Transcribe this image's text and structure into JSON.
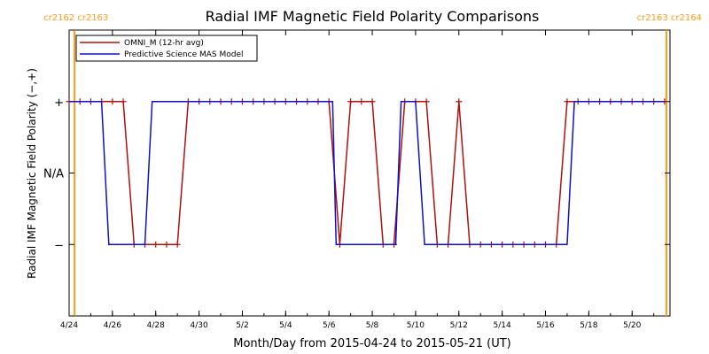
{
  "colors": {
    "omni": "#b01010",
    "mas": "#1010c8",
    "carrington": "#ff9a1a",
    "axis": "#000000"
  },
  "chart_data": {
    "type": "line",
    "title": "Radial IMF Magnetic Field Polarity Comparisons",
    "xlabel": "Month/Day from 2015-04-24 to 2015-05-21 (UT)",
    "ylabel": "Radial IMF Magnetic Field Polarity (−,+)",
    "xlim": [
      "2015-04-24T00:00",
      "2015-05-21T18:00"
    ],
    "ylim": [
      -2,
      2
    ],
    "x_ticks": [
      {
        "label": "4/24",
        "date": "2015-04-24"
      },
      {
        "label": "4/26",
        "date": "2015-04-26"
      },
      {
        "label": "4/28",
        "date": "2015-04-28"
      },
      {
        "label": "4/30",
        "date": "2015-04-30"
      },
      {
        "label": "5/2",
        "date": "2015-05-02"
      },
      {
        "label": "5/4",
        "date": "2015-05-04"
      },
      {
        "label": "5/6",
        "date": "2015-05-06"
      },
      {
        "label": "5/8",
        "date": "2015-05-08"
      },
      {
        "label": "5/10",
        "date": "2015-05-10"
      },
      {
        "label": "5/12",
        "date": "2015-05-12"
      },
      {
        "label": "5/14",
        "date": "2015-05-14"
      },
      {
        "label": "5/16",
        "date": "2015-05-16"
      },
      {
        "label": "5/18",
        "date": "2015-05-18"
      },
      {
        "label": "5/20",
        "date": "2015-05-20"
      }
    ],
    "y_ticks": [
      {
        "label": "+",
        "value": 1
      },
      {
        "label": "N/A",
        "value": 0
      },
      {
        "label": "−",
        "value": -1
      }
    ],
    "carrington_rotations": [
      {
        "label": "cr2162 cr2163",
        "date": "2015-04-24T06:00"
      },
      {
        "label": "cr2163 cr2164",
        "date": "2015-05-21T14:00"
      }
    ],
    "legend_position": "top-left",
    "grid": false,
    "series": [
      {
        "name": "OMNI_M (12-hr avg)",
        "color": "#b01010",
        "markers": "plus",
        "x": [
          "2015-04-24T00:00",
          "2015-04-24T12:00",
          "2015-04-25T00:00",
          "2015-04-25T12:00",
          "2015-04-26T00:00",
          "2015-04-26T12:00",
          "2015-04-27T00:00",
          "2015-04-27T12:00",
          "2015-04-28T00:00",
          "2015-04-28T12:00",
          "2015-04-29T00:00",
          "2015-04-29T12:00",
          "2015-04-30T00:00",
          "2015-04-30T12:00",
          "2015-05-01T00:00",
          "2015-05-01T12:00",
          "2015-05-02T00:00",
          "2015-05-02T12:00",
          "2015-05-03T00:00",
          "2015-05-03T12:00",
          "2015-05-04T00:00",
          "2015-05-04T12:00",
          "2015-05-05T00:00",
          "2015-05-05T12:00",
          "2015-05-06T00:00",
          "2015-05-06T12:00",
          "2015-05-07T00:00",
          "2015-05-07T12:00",
          "2015-05-08T00:00",
          "2015-05-08T12:00",
          "2015-05-09T00:00",
          "2015-05-09T12:00",
          "2015-05-10T00:00",
          "2015-05-10T12:00",
          "2015-05-11T00:00",
          "2015-05-11T12:00",
          "2015-05-12T00:00",
          "2015-05-12T12:00",
          "2015-05-13T00:00",
          "2015-05-13T12:00",
          "2015-05-14T00:00",
          "2015-05-14T12:00",
          "2015-05-15T00:00",
          "2015-05-15T12:00",
          "2015-05-16T00:00",
          "2015-05-16T12:00",
          "2015-05-17T00:00",
          "2015-05-17T12:00",
          "2015-05-18T00:00",
          "2015-05-18T12:00",
          "2015-05-19T00:00",
          "2015-05-19T12:00",
          "2015-05-20T00:00",
          "2015-05-20T12:00",
          "2015-05-21T00:00",
          "2015-05-21T12:00"
        ],
        "y": [
          1,
          1,
          1,
          1,
          1,
          1,
          -1,
          -1,
          -1,
          -1,
          -1,
          1,
          1,
          1,
          1,
          1,
          1,
          1,
          1,
          1,
          1,
          1,
          1,
          1,
          1,
          -1,
          1,
          1,
          1,
          -1,
          -1,
          1,
          1,
          1,
          -1,
          -1,
          1,
          -1,
          -1,
          -1,
          -1,
          -1,
          -1,
          -1,
          -1,
          -1,
          1,
          1,
          1,
          1,
          1,
          1,
          1,
          1,
          1,
          1
        ]
      },
      {
        "name": "Predictive Science MAS Model",
        "color": "#1010c8",
        "markers": "none",
        "x": [
          "2015-04-24T00:00",
          "2015-04-25T12:00",
          "2015-04-25T20:00",
          "2015-04-27T12:00",
          "2015-04-27T20:00",
          "2015-05-06T04:00",
          "2015-05-06T08:00",
          "2015-05-09T02:00",
          "2015-05-09T08:00",
          "2015-05-10T00:00",
          "2015-05-10T10:00",
          "2015-05-17T00:00",
          "2015-05-17T08:00",
          "2015-05-21T12:00"
        ],
        "y": [
          1,
          1,
          -1,
          -1,
          1,
          1,
          -1,
          -1,
          1,
          1,
          -1,
          -1,
          1,
          1
        ]
      }
    ]
  }
}
